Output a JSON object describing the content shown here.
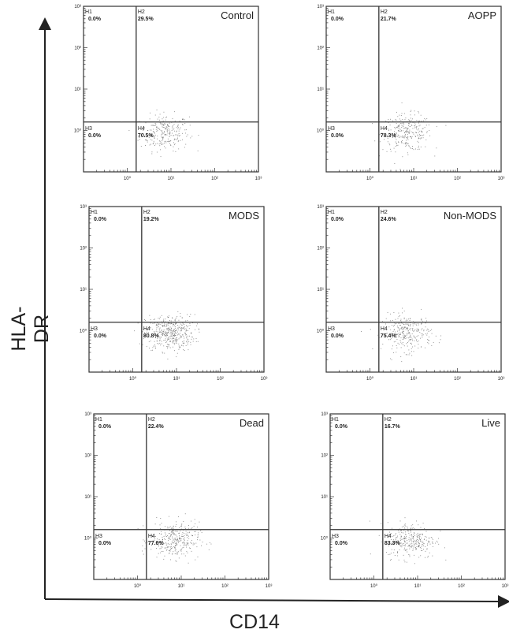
{
  "chart_data": {
    "type": "scatter",
    "xlabel": "CD14",
    "ylabel": "HLA-DR",
    "x_scale": "log",
    "y_scale": "log",
    "xlim": [
      0.1,
      1000
    ],
    "ylim": [
      0.1,
      1000
    ],
    "x_ticks": [
      "10⁰",
      "10¹",
      "10²",
      "10³"
    ],
    "y_ticks": [
      "10⁰",
      "10¹",
      "10²",
      "10³"
    ],
    "quadrant_labels": [
      "H1",
      "H2",
      "H3",
      "H4"
    ],
    "panels": [
      {
        "title": "Control",
        "H1": "0.0%",
        "H2": "29.5%",
        "H3": "0.0%",
        "H4": "70.5%",
        "gate_x": 1.6,
        "gate_y": 1.6,
        "cluster_center": [
          7,
          0.9
        ],
        "n_points": 260
      },
      {
        "title": "AOPP",
        "H1": "0.0%",
        "H2": "21.7%",
        "H3": "0.0%",
        "H4": "78.3%",
        "gate_x": 1.6,
        "gate_y": 1.6,
        "cluster_center": [
          7,
          0.9
        ],
        "n_points": 280
      },
      {
        "title": "MODS",
        "H1": "0.0%",
        "H2": "19.2%",
        "H3": "0.0%",
        "H4": "80.8%",
        "gate_x": 1.6,
        "gate_y": 1.6,
        "cluster_center": [
          7,
          0.9
        ],
        "n_points": 420
      },
      {
        "title": "Non-MODS",
        "H1": "0.0%",
        "H2": "24.6%",
        "H3": "0.0%",
        "H4": "75.4%",
        "gate_x": 1.6,
        "gate_y": 1.6,
        "cluster_center": [
          7,
          0.9
        ],
        "n_points": 300
      },
      {
        "title": "Dead",
        "H1": "0.0%",
        "H2": "22.4%",
        "H3": "0.0%",
        "H4": "77.6%",
        "gate_x": 1.6,
        "gate_y": 1.6,
        "cluster_center": [
          7,
          0.9
        ],
        "n_points": 320
      },
      {
        "title": "Live",
        "H1": "0.0%",
        "H2": "16.7%",
        "H3": "0.0%",
        "H4": "83.3%",
        "gate_x": 1.6,
        "gate_y": 1.6,
        "cluster_center": [
          7,
          0.9
        ],
        "n_points": 300
      }
    ],
    "colors": {
      "points": "#555555",
      "frame": "#333333",
      "text": "#222222"
    }
  }
}
